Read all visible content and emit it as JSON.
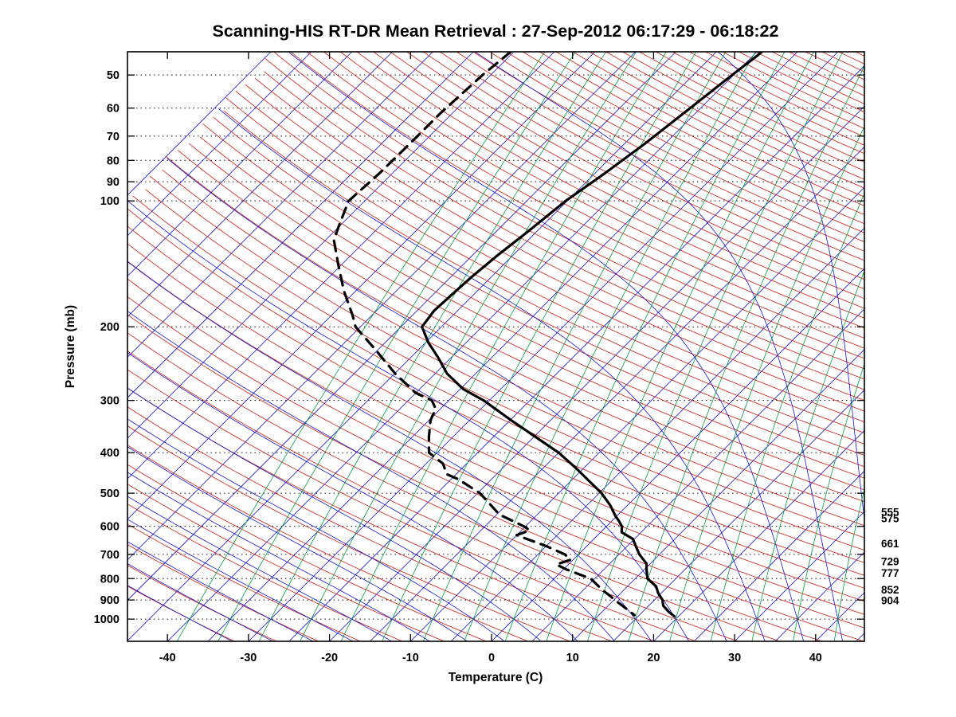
{
  "title": "Scanning-HIS RT-DR Mean Retrieval : 27-Sep-2012 06:17:29 - 06:18:22",
  "chart_data": {
    "type": "line",
    "variant": "skew-t-log-p",
    "title": "Scanning-HIS RT-DR Mean Retrieval : 27-Sep-2012 06:17:29 - 06:18:22",
    "xlabel": "Temperature (C)",
    "ylabel": "Pressure (mb)",
    "xlim": [
      -45,
      45
    ],
    "pressure_lim": [
      44,
      1130
    ],
    "skew_isotherm_deg": 45,
    "grid": "dotted horizontal isobars at labeled pressures",
    "x_ticks": [
      -40,
      -30,
      -20,
      -10,
      0,
      10,
      20,
      30,
      40
    ],
    "y_ticks": [
      50,
      60,
      70,
      80,
      90,
      100,
      200,
      300,
      400,
      500,
      600,
      700,
      800,
      900,
      1000
    ],
    "right_level_labels": [
      555,
      575,
      661,
      729,
      777,
      852,
      904
    ],
    "background": {
      "isotherms": {
        "color": "#1515cc",
        "t_min": -100,
        "t_max": 45,
        "step_c": 5
      },
      "dry_adiabats": {
        "color": "#cc1a10",
        "theta_min": -40,
        "theta_max": 325,
        "step_c": 5
      },
      "moist_adiabats": {
        "color": "#1515cc",
        "thetaw_min": -40,
        "thetaw_max": 45,
        "step_c": 5
      },
      "mixing_ratio_lines": {
        "color": "#00a040",
        "t1000_min": -40,
        "t1000_max": 45,
        "step_c": 5
      },
      "grid_color": "#111111",
      "min_temp_drawn_c": -100
    },
    "series": [
      {
        "name": "temperature",
        "style": "solid",
        "color": "#000000",
        "points": [
          [
            44,
            -39.4
          ],
          [
            45,
            -39.5
          ],
          [
            50,
            -40.2
          ],
          [
            60,
            -41.3
          ],
          [
            73,
            -42.5
          ],
          [
            86,
            -43.8
          ],
          [
            100,
            -45.2
          ],
          [
            119,
            -46.1
          ],
          [
            135,
            -46.9
          ],
          [
            151,
            -47.4
          ],
          [
            168,
            -47.7
          ],
          [
            183,
            -47.9
          ],
          [
            200,
            -47.4
          ],
          [
            218,
            -44.7
          ],
          [
            237,
            -41.6
          ],
          [
            259,
            -38.5
          ],
          [
            282,
            -34.6
          ],
          [
            300,
            -30.7
          ],
          [
            335,
            -24.8
          ],
          [
            366,
            -19.9
          ],
          [
            400,
            -15.0
          ],
          [
            435,
            -11.0
          ],
          [
            469,
            -7.6
          ],
          [
            500,
            -4.7
          ],
          [
            535,
            -2.1
          ],
          [
            568,
            -0.1
          ],
          [
            583,
            0.9
          ],
          [
            600,
            1.9
          ],
          [
            620,
            2.6
          ],
          [
            643,
            4.8
          ],
          [
            672,
            6.2
          ],
          [
            700,
            7.5
          ],
          [
            736,
            9.5
          ],
          [
            765,
            10.4
          ],
          [
            800,
            11.5
          ],
          [
            834,
            13.5
          ],
          [
            866,
            14.6
          ],
          [
            900,
            16.0
          ],
          [
            929,
            16.8
          ],
          [
            962,
            18.3
          ],
          [
            985,
            19.5
          ]
        ]
      },
      {
        "name": "dewpoint",
        "style": "dashed",
        "color": "#000000",
        "points": [
          [
            44,
            -70.4
          ],
          [
            45,
            -70.5
          ],
          [
            50,
            -71.0
          ],
          [
            62,
            -71.5
          ],
          [
            73,
            -71.5
          ],
          [
            86,
            -71.6
          ],
          [
            100,
            -72.0
          ],
          [
            114,
            -70.2
          ],
          [
            124,
            -69.0
          ],
          [
            141,
            -65.6
          ],
          [
            164,
            -61.5
          ],
          [
            187,
            -57.5
          ],
          [
            200,
            -55.6
          ],
          [
            227,
            -50.3
          ],
          [
            259,
            -44.9
          ],
          [
            288,
            -40.0
          ],
          [
            300,
            -37.1
          ],
          [
            314,
            -35.6
          ],
          [
            335,
            -34.8
          ],
          [
            366,
            -33.0
          ],
          [
            400,
            -31.0
          ],
          [
            425,
            -27.9
          ],
          [
            450,
            -26.2
          ],
          [
            463,
            -24.1
          ],
          [
            500,
            -19.7
          ],
          [
            535,
            -16.8
          ],
          [
            562,
            -14.7
          ],
          [
            600,
            -10.2
          ],
          [
            613,
            -9.0
          ],
          [
            630,
            -10.0
          ],
          [
            668,
            -5.1
          ],
          [
            700,
            -1.7
          ],
          [
            721,
            -0.3
          ],
          [
            740,
            -1.5
          ],
          [
            760,
            0.3
          ],
          [
            800,
            4.5
          ],
          [
            849,
            7.2
          ],
          [
            885,
            9.3
          ],
          [
            912,
            10.8
          ],
          [
            944,
            12.6
          ],
          [
            978,
            14.4
          ]
        ]
      }
    ]
  }
}
